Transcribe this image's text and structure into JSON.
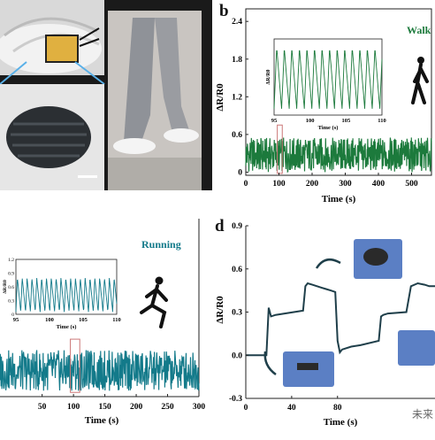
{
  "figure": {
    "panel_a": {
      "scale_bar": ""
    },
    "panel_b": {
      "label": "b",
      "title": "Walk",
      "ylabel": "ΔR/R0",
      "xlabel": "Time (s)",
      "inset_xlabel": "Time (s)",
      "inset_ylabel": "ΔR/R0"
    },
    "panel_c": {
      "title": "Running",
      "xlabel": "Time (s)",
      "inset_xlabel": "Time (s)",
      "inset_ylabel": "ΔR/R0"
    },
    "panel_d": {
      "label": "d",
      "ylabel": "ΔR/R0",
      "xlabel": "Time (s)",
      "watermark": "未来"
    }
  },
  "chart_data": [
    {
      "type": "line",
      "panel": "b",
      "title": "Walk",
      "xlabel": "Time (s)",
      "ylabel": "ΔR/R0",
      "xlim": [
        0,
        560
      ],
      "ylim": [
        -0.05,
        2.6
      ],
      "xticks": [
        "0",
        "100",
        "200",
        "300",
        "400",
        "500"
      ],
      "yticks": [
        "0",
        "0.6",
        "1.2",
        "1.8",
        "2.4"
      ],
      "series": [
        {
          "band_low": 0.0,
          "band_high": 0.55
        }
      ],
      "inset": {
        "xticks": [
          "95",
          "100",
          "105",
          "110"
        ],
        "xlabel": "Time (s)",
        "ylabel": "ΔR/R0",
        "xlim": [
          95,
          110
        ],
        "ylim": [
          0,
          0.6
        ],
        "period_s": 1.05,
        "amplitude_max": 0.55
      },
      "highlight_x": [
        95,
        110
      ]
    },
    {
      "type": "line",
      "panel": "c",
      "title": "Running",
      "xlabel": "Time (s)",
      "xlim": [
        -20,
        300
      ],
      "xticks": [
        "50",
        "100",
        "150",
        "200",
        "250",
        "300"
      ],
      "series": [
        {
          "band_low": 0.0,
          "band_high": 0.75
        }
      ],
      "inset": {
        "xticks": [
          "95",
          "100",
          "105",
          "110"
        ],
        "yticks": [
          "0",
          "0.3",
          "0.6",
          "0.9",
          "1.2"
        ],
        "xlabel": "Time (s)",
        "ylabel": "ΔR/R0",
        "xlim": [
          95,
          110
        ],
        "ylim": [
          0,
          1.2
        ],
        "period_s": 0.72,
        "amplitude_max": 0.8
      },
      "highlight_x": [
        95,
        110
      ]
    },
    {
      "type": "line",
      "panel": "d",
      "xlabel": "Time (s)",
      "ylabel": "ΔR/R0",
      "xlim": [
        0,
        165
      ],
      "ylim": [
        -0.3,
        0.9
      ],
      "xticks": [
        "0",
        "40",
        "80"
      ],
      "yticks": [
        "-0.3",
        "0.0",
        "0.3",
        "0.6",
        "0.9"
      ],
      "series": [
        {
          "x": [
            0,
            18,
            20,
            22,
            26,
            50,
            52,
            54,
            58,
            66,
            70,
            74,
            78,
            80,
            82,
            84,
            92,
            100,
            116,
            118,
            120,
            124,
            140,
            144,
            150,
            156,
            160,
            165
          ],
          "y": [
            0.0,
            0.0,
            0.33,
            0.27,
            0.28,
            0.31,
            0.48,
            0.5,
            0.49,
            0.47,
            0.46,
            0.45,
            0.44,
            0.1,
            0.02,
            0.04,
            0.06,
            0.07,
            0.1,
            0.27,
            0.28,
            0.29,
            0.3,
            0.48,
            0.5,
            0.49,
            0.48,
            0.48
          ]
        }
      ]
    }
  ]
}
